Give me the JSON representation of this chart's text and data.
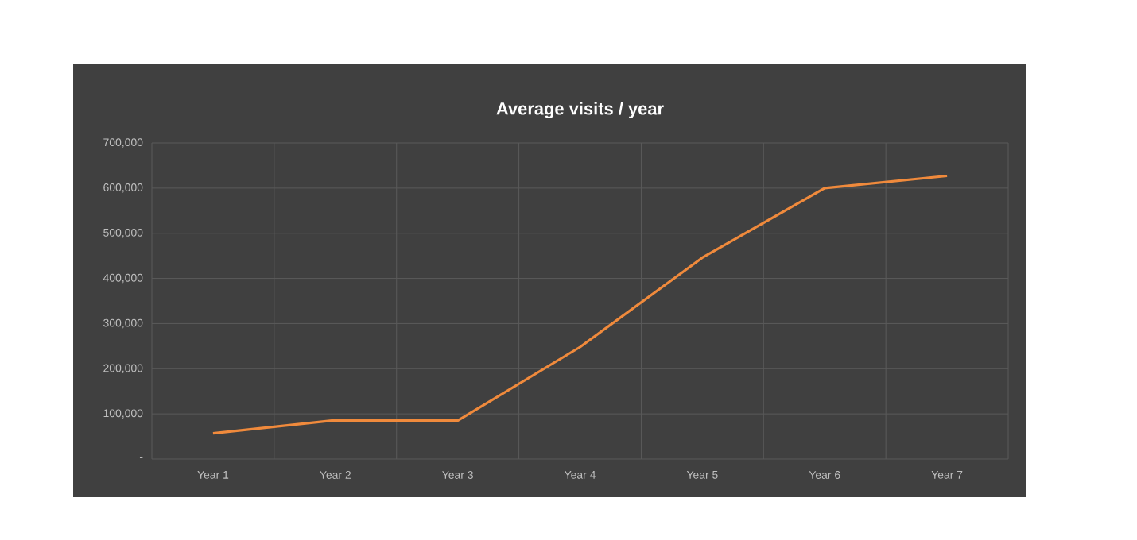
{
  "chart_data": {
    "type": "line",
    "title": "Average visits / year",
    "categories": [
      "Year 1",
      "Year 2",
      "Year 3",
      "Year 4",
      "Year 5",
      "Year 6",
      "Year 7"
    ],
    "series": [
      {
        "color": "#f08a3c",
        "values": [
          57000,
          86000,
          85000,
          248000,
          446000,
          600000,
          627000
        ]
      }
    ],
    "ylim": [
      0,
      700000
    ],
    "yticks": [
      {
        "value": 0,
        "label": "-"
      },
      {
        "value": 100000,
        "label": "100,000"
      },
      {
        "value": 200000,
        "label": "200,000"
      },
      {
        "value": 300000,
        "label": "300,000"
      },
      {
        "value": 400000,
        "label": "400,000"
      },
      {
        "value": 500000,
        "label": "500,000"
      },
      {
        "value": 600000,
        "label": "600,000"
      },
      {
        "value": 700000,
        "label": "700,000"
      }
    ],
    "grid": true,
    "marker": "none",
    "line_style": "solid"
  }
}
